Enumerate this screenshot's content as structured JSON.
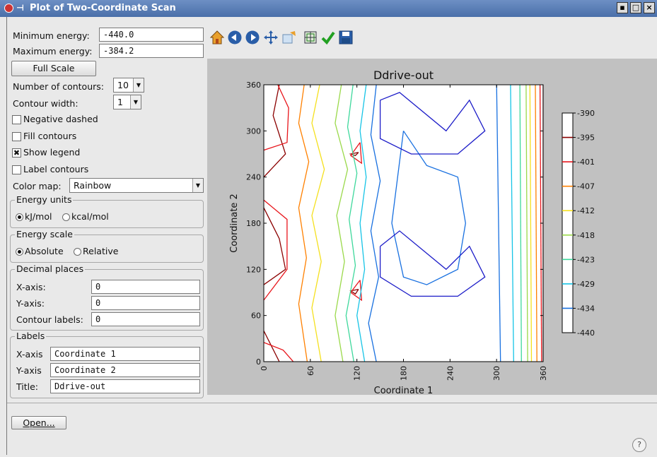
{
  "window": {
    "title": "Plot of Two-Coordinate Scan"
  },
  "controls": {
    "min_energy_label": "Minimum energy:",
    "min_energy_value": "-440.0",
    "max_energy_label": "Maximum energy:",
    "max_energy_value": "-384.2",
    "full_scale_label": "Full Scale",
    "num_contours_label": "Number of contours:",
    "num_contours_value": "10",
    "contour_width_label": "Contour width:",
    "contour_width_value": "1",
    "negative_dashed_label": "Negative dashed",
    "negative_dashed_checked": false,
    "fill_contours_label": "Fill contours",
    "fill_contours_checked": false,
    "show_legend_label": "Show legend",
    "show_legend_checked": true,
    "label_contours_label": "Label contours",
    "label_contours_checked": false,
    "color_map_label": "Color map:",
    "color_map_value": "Rainbow"
  },
  "energy_units": {
    "title": "Energy units",
    "option1": "kJ/mol",
    "option2": "kcal/mol",
    "selected": "kJ/mol"
  },
  "energy_scale": {
    "title": "Energy scale",
    "option1": "Absolute",
    "option2": "Relative",
    "selected": "Absolute"
  },
  "decimal_places": {
    "title": "Decimal places",
    "x_label": "X-axis:",
    "x_value": "0",
    "y_label": "Y-axis:",
    "y_value": "0",
    "contour_label": "Contour labels:",
    "contour_value": "0"
  },
  "labels": {
    "title": "Labels",
    "x_label": "X-axis",
    "x_value": "Coordinate 1",
    "y_label": "Y-axis",
    "y_value": "Coordinate 2",
    "title_label": "Title:",
    "title_value": "Ddrive-out"
  },
  "toolbar": {
    "icons": [
      "home-icon",
      "back-icon",
      "forward-icon",
      "pan-icon",
      "zoom-icon",
      "subplots-icon",
      "check-icon",
      "save-icon"
    ]
  },
  "open_button": {
    "label": "Open..."
  },
  "help": {
    "label": "?"
  },
  "chart_data": {
    "type": "contour",
    "title": "Ddrive-out",
    "xlabel": "Coordinate 1",
    "ylabel": "Coordinate 2",
    "xlim": [
      0,
      360
    ],
    "ylim": [
      0,
      360
    ],
    "xticks": [
      "0",
      "60",
      "120",
      "180",
      "240",
      "300",
      "360"
    ],
    "yticks": [
      "0",
      "60",
      "120",
      "180",
      "240",
      "300",
      "360"
    ],
    "colorbar_ticks": [
      "-390",
      "-395",
      "-401",
      "-407",
      "-412",
      "-418",
      "-423",
      "-429",
      "-434",
      "-440"
    ],
    "colorbar_colors": [
      "#ffffff",
      "#8b0000",
      "#e8151b",
      "#ff8000",
      "#f5e01d",
      "#9ad94a",
      "#3ed89c",
      "#16c4e6",
      "#1870e0",
      "#1c1cc8",
      "#ffffff"
    ],
    "levels": [
      {
        "level": -395,
        "color": "#8b0000",
        "lines": [
          [
            [
              20,
              360
            ],
            [
              12,
              320
            ],
            [
              28,
              270
            ],
            [
              0,
              240
            ]
          ],
          [
            [
              0,
              200
            ],
            [
              20,
              160
            ],
            [
              28,
              120
            ],
            [
              0,
              100
            ]
          ],
          [
            [
              0,
              40
            ],
            [
              20,
              0
            ]
          ],
          [
            [
              122,
              272
            ],
            [
              118,
              268
            ],
            [
              112,
              270
            ],
            [
              122,
              272
            ]
          ],
          [
            [
              122,
              94
            ],
            [
              118,
              88
            ],
            [
              112,
              92
            ],
            [
              122,
              94
            ]
          ],
          [
            [
              360,
              0
            ],
            [
              360,
              360
            ]
          ]
        ]
      },
      {
        "level": -401,
        "color": "#e8151b",
        "lines": [
          [
            [
              0,
              275
            ],
            [
              30,
              285
            ],
            [
              32,
              330
            ],
            [
              18,
              360
            ]
          ],
          [
            [
              0,
              210
            ],
            [
              30,
              185
            ],
            [
              30,
              120
            ],
            [
              0,
              80
            ]
          ],
          [
            [
              0,
              25
            ],
            [
              25,
              15
            ],
            [
              38,
              0
            ]
          ],
          [
            [
              124,
              285
            ],
            [
              112,
              268
            ],
            [
              126,
              258
            ],
            [
              124,
              285
            ]
          ],
          [
            [
              124,
              106
            ],
            [
              112,
              90
            ],
            [
              126,
              80
            ],
            [
              124,
              106
            ]
          ],
          [
            [
              358,
              0
            ],
            [
              356,
              360
            ]
          ]
        ]
      },
      {
        "level": -407,
        "color": "#ff8000",
        "lines": [
          [
            [
              52,
              360
            ],
            [
              45,
              310
            ],
            [
              58,
              260
            ],
            [
              45,
              200
            ],
            [
              55,
              135
            ],
            [
              45,
              75
            ],
            [
              56,
              0
            ]
          ],
          [
            [
              352,
              0
            ],
            [
              350,
              360
            ]
          ]
        ]
      },
      {
        "level": -412,
        "color": "#f5e01d",
        "lines": [
          [
            [
              72,
              360
            ],
            [
              62,
              310
            ],
            [
              78,
              250
            ],
            [
              62,
              190
            ],
            [
              74,
              130
            ],
            [
              62,
              70
            ],
            [
              74,
              0
            ]
          ],
          [
            [
              345,
              0
            ],
            [
              343,
              360
            ]
          ]
        ]
      },
      {
        "level": -418,
        "color": "#9ad94a",
        "lines": [
          [
            [
              100,
              360
            ],
            [
              92,
              310
            ],
            [
              108,
              250
            ],
            [
              94,
              190
            ],
            [
              104,
              130
            ],
            [
              92,
              60
            ],
            [
              102,
              0
            ]
          ],
          [
            [
              340,
              0
            ],
            [
              338,
              360
            ]
          ]
        ]
      },
      {
        "level": -423,
        "color": "#3ed89c",
        "lines": [
          [
            [
              115,
              360
            ],
            [
              108,
              305
            ],
            [
              120,
              245
            ],
            [
              110,
              185
            ],
            [
              118,
              125
            ],
            [
              106,
              60
            ],
            [
              116,
              0
            ]
          ],
          [
            [
              332,
              0
            ],
            [
              330,
              360
            ]
          ]
        ]
      },
      {
        "level": -429,
        "color": "#16c4e6",
        "lines": [
          [
            [
              132,
              360
            ],
            [
              124,
              300
            ],
            [
              132,
              240
            ],
            [
              124,
              180
            ],
            [
              130,
              120
            ],
            [
              120,
              60
            ],
            [
              130,
              0
            ]
          ],
          [
            [
              322,
              0
            ],
            [
              318,
              360
            ]
          ]
        ]
      },
      {
        "level": -434,
        "color": "#1870e0",
        "lines": [
          [
            [
              145,
              360
            ],
            [
              138,
              295
            ],
            [
              150,
              235
            ],
            [
              138,
              170
            ],
            [
              148,
              110
            ],
            [
              135,
              50
            ],
            [
              145,
              0
            ]
          ],
          [
            [
              305,
              0
            ],
            [
              300,
              360
            ]
          ],
          [
            [
              180,
              300
            ],
            [
              210,
              255
            ],
            [
              250,
              240
            ],
            [
              260,
              180
            ],
            [
              250,
              120
            ],
            [
              210,
              100
            ],
            [
              180,
              110
            ],
            [
              165,
              180
            ],
            [
              180,
              300
            ]
          ]
        ]
      },
      {
        "level": -440,
        "color": "#1c1cc8",
        "lines": [
          [
            [
              150,
              340
            ],
            [
              175,
              350
            ],
            [
              235,
              300
            ],
            [
              265,
              340
            ],
            [
              285,
              300
            ],
            [
              250,
              270
            ],
            [
              190,
              270
            ],
            [
              150,
              290
            ],
            [
              150,
              340
            ]
          ],
          [
            [
              150,
              150
            ],
            [
              175,
              170
            ],
            [
              235,
              120
            ],
            [
              265,
              150
            ],
            [
              285,
              110
            ],
            [
              250,
              85
            ],
            [
              190,
              85
            ],
            [
              150,
              110
            ],
            [
              150,
              150
            ]
          ]
        ]
      }
    ]
  }
}
